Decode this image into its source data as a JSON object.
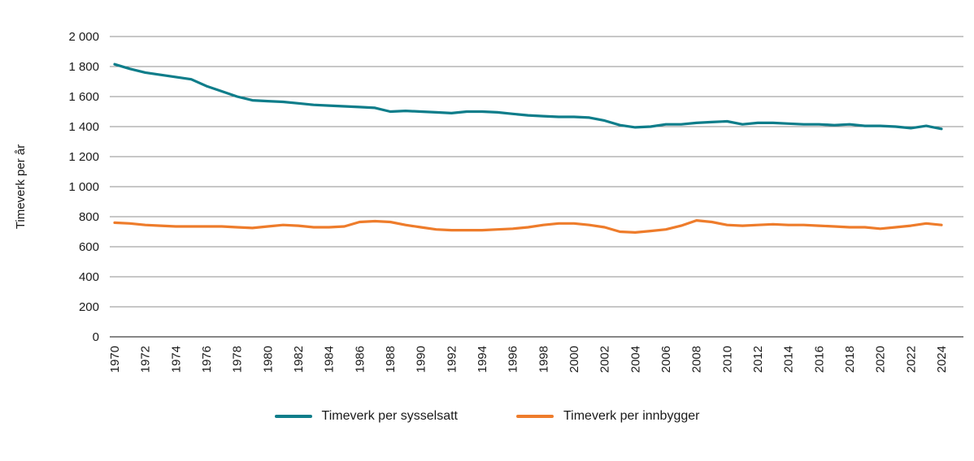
{
  "chart_data": {
    "type": "line",
    "title": "",
    "xlabel": "",
    "ylabel": "Timeverk per år",
    "ylim": [
      0,
      2000
    ],
    "grid": true,
    "legend_position": "bottom",
    "x": [
      1970,
      1971,
      1972,
      1973,
      1974,
      1975,
      1976,
      1977,
      1978,
      1979,
      1980,
      1981,
      1982,
      1983,
      1984,
      1985,
      1986,
      1987,
      1988,
      1989,
      1990,
      1991,
      1992,
      1993,
      1994,
      1995,
      1996,
      1997,
      1998,
      1999,
      2000,
      2001,
      2002,
      2003,
      2004,
      2005,
      2006,
      2007,
      2008,
      2009,
      2010,
      2011,
      2012,
      2013,
      2014,
      2015,
      2016,
      2017,
      2018,
      2019,
      2020,
      2021,
      2022,
      2023,
      2024
    ],
    "xticks": [
      "1970",
      "1972",
      "1974",
      "1976",
      "1978",
      "1980",
      "1982",
      "1984",
      "1986",
      "1988",
      "1990",
      "1992",
      "1994",
      "1996",
      "1998",
      "2000",
      "2002",
      "2004",
      "2006",
      "2008",
      "2010",
      "2012",
      "2014",
      "2016",
      "2018",
      "2020",
      "2022",
      "2024"
    ],
    "yticks": [
      {
        "value": 0,
        "label": "0"
      },
      {
        "value": 200,
        "label": "200"
      },
      {
        "value": 400,
        "label": "400"
      },
      {
        "value": 600,
        "label": "600"
      },
      {
        "value": 800,
        "label": "800"
      },
      {
        "value": 1000,
        "label": "1 000"
      },
      {
        "value": 1200,
        "label": "1 200"
      },
      {
        "value": 1400,
        "label": "1 400"
      },
      {
        "value": 1600,
        "label": "1 600"
      },
      {
        "value": 1800,
        "label": "1 800"
      },
      {
        "value": 2000,
        "label": "2 000"
      }
    ],
    "series": [
      {
        "name": "Timeverk per sysselsatt",
        "color": "#0e7d8a",
        "values": [
          1815,
          1785,
          1760,
          1745,
          1730,
          1715,
          1670,
          1635,
          1600,
          1575,
          1570,
          1565,
          1555,
          1545,
          1540,
          1535,
          1530,
          1525,
          1500,
          1505,
          1500,
          1495,
          1490,
          1500,
          1500,
          1495,
          1485,
          1475,
          1470,
          1465,
          1465,
          1460,
          1440,
          1410,
          1395,
          1400,
          1415,
          1415,
          1425,
          1430,
          1435,
          1415,
          1425,
          1425,
          1420,
          1415,
          1415,
          1410,
          1415,
          1405,
          1405,
          1400,
          1390,
          1405,
          1385
        ]
      },
      {
        "name": "Timeverk per innbygger",
        "color": "#ee7c2b",
        "values": [
          760,
          755,
          745,
          740,
          735,
          735,
          735,
          735,
          730,
          725,
          735,
          745,
          740,
          730,
          730,
          735,
          765,
          770,
          765,
          745,
          730,
          715,
          710,
          710,
          710,
          715,
          720,
          730,
          745,
          755,
          755,
          745,
          730,
          700,
          695,
          705,
          715,
          740,
          775,
          765,
          745,
          740,
          745,
          750,
          745,
          745,
          740,
          735,
          730,
          730,
          720,
          730,
          740,
          755,
          745
        ]
      }
    ]
  }
}
